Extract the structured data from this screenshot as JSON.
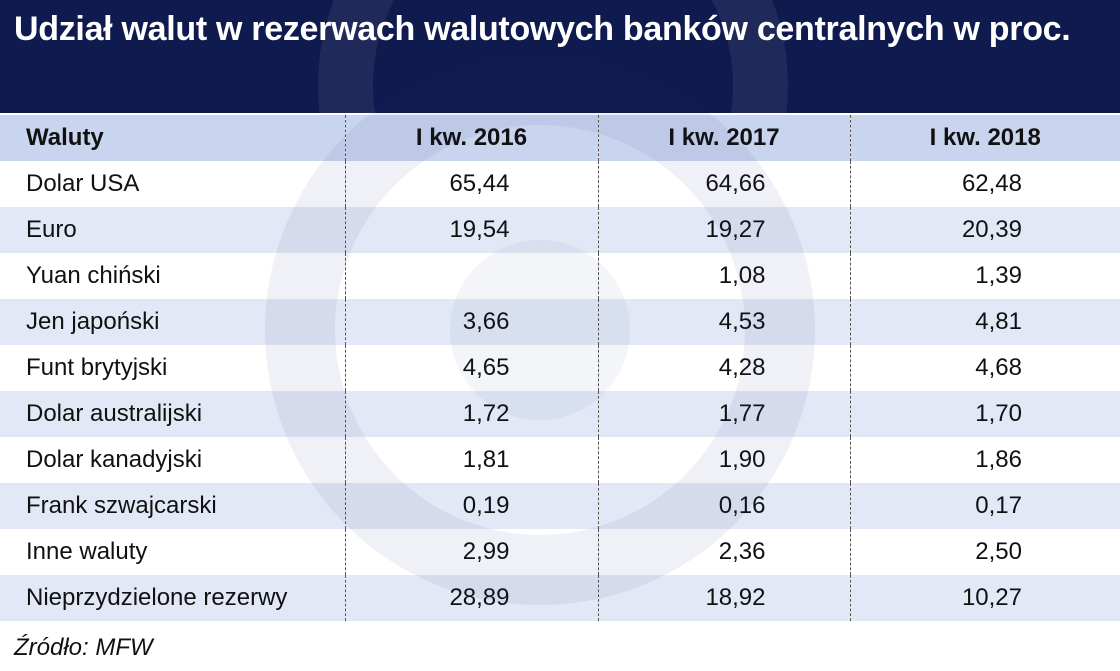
{
  "title": "Udział walut w rezerwach walutowych banków centralnych w proc.",
  "source": "Źródło: MFW",
  "colors": {
    "header_bg": "#0f1a4e",
    "column_header_bg": "#c9d4ee",
    "row_stripe": "#e2e8f5"
  },
  "chart_data": {
    "type": "table",
    "columns": [
      "Waluty",
      "I kw. 2016",
      "I kw. 2017",
      "I kw. 2018"
    ],
    "rows": [
      {
        "label": "Dolar USA",
        "values": [
          "65,44",
          "64,66",
          "62,48"
        ]
      },
      {
        "label": "Euro",
        "values": [
          "19,54",
          "19,27",
          "20,39"
        ]
      },
      {
        "label": "Yuan chiński",
        "values": [
          "",
          "1,08",
          "1,39"
        ]
      },
      {
        "label": "Jen japoński",
        "values": [
          "3,66",
          "4,53",
          "4,81"
        ]
      },
      {
        "label": "Funt brytyjski",
        "values": [
          "4,65",
          "4,28",
          "4,68"
        ]
      },
      {
        "label": "Dolar australijski",
        "values": [
          "1,72",
          "1,77",
          "1,70"
        ]
      },
      {
        "label": "Dolar kanadyjski",
        "values": [
          "1,81",
          "1,90",
          "1,86"
        ]
      },
      {
        "label": "Frank szwajcarski",
        "values": [
          "0,19",
          "0,16",
          "0,17"
        ]
      },
      {
        "label": "Inne waluty",
        "values": [
          "2,99",
          "2,36",
          "2,50"
        ]
      },
      {
        "label": "Nieprzydzielone rezerwy",
        "values": [
          "28,89",
          "18,92",
          "10,27"
        ]
      }
    ]
  }
}
